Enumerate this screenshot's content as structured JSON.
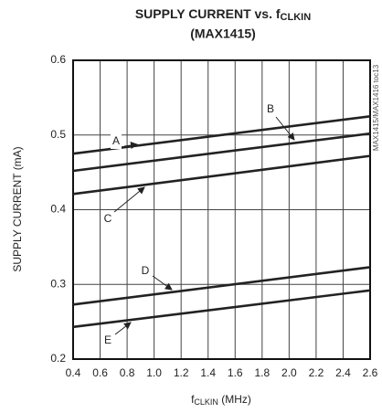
{
  "chart_data": {
    "type": "line",
    "title": [
      "SUPPLY CURRENT vs. f",
      "CLKIN"
    ],
    "subtitle": "(MAX1415)",
    "y_label": "SUPPLY CURRENT (mA)",
    "x_label": [
      "f",
      "CLKIN",
      " (MHz)"
    ],
    "side_note": "MAX1415/MAX1416 toc13",
    "x": [
      0.4,
      2.6
    ],
    "series": [
      {
        "name": "A",
        "color": "#222222",
        "values": [
          0.475,
          0.525
        ]
      },
      {
        "name": "B",
        "color": "#222222",
        "values": [
          0.452,
          0.502
        ]
      },
      {
        "name": "C",
        "color": "#222222",
        "values": [
          0.421,
          0.472
        ]
      },
      {
        "name": "D",
        "color": "#222222",
        "values": [
          0.273,
          0.323
        ]
      },
      {
        "name": "E",
        "color": "#222222",
        "values": [
          0.243,
          0.292
        ]
      }
    ],
    "xlim": [
      0.4,
      2.6
    ],
    "xticks": [
      0.4,
      0.6,
      0.8,
      {
        "value": 1,
        "label": "1.0"
      },
      1.2,
      1.4,
      1.6,
      1.8,
      {
        "value": 2,
        "label": "2.0"
      },
      2.2,
      2.4,
      2.6
    ],
    "ylim": [
      0.2,
      0.6
    ],
    "yticks": [
      0.2,
      0.3,
      0.4,
      0.5,
      0.6
    ],
    "grid": true
  }
}
